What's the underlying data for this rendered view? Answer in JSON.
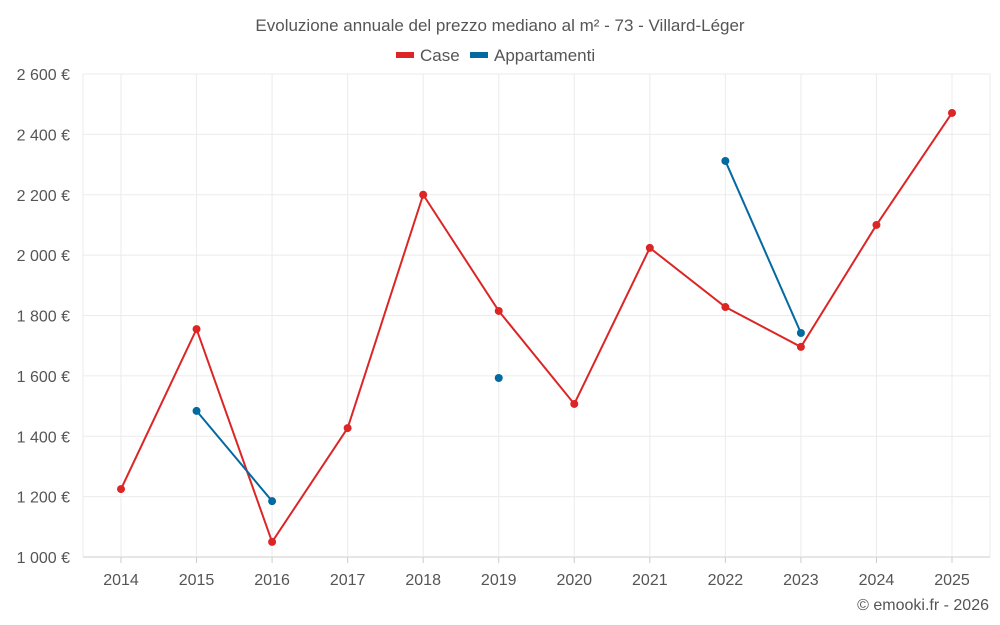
{
  "chart_data": {
    "type": "line",
    "title": "Evoluzione annuale del prezzo mediano al m² - 73 - Villard-Léger",
    "xlabel": "",
    "ylabel": "",
    "x": [
      "2014",
      "2015",
      "2016",
      "2017",
      "2018",
      "2019",
      "2020",
      "2021",
      "2022",
      "2023",
      "2024",
      "2025"
    ],
    "ylim": [
      1000,
      2600
    ],
    "yticks": [
      1000,
      1200,
      1400,
      1600,
      1800,
      2000,
      2200,
      2400,
      2600
    ],
    "ytick_labels": [
      "1 000 €",
      "1 200 €",
      "1 400 €",
      "1 600 €",
      "1 800 €",
      "2 000 €",
      "2 200 €",
      "2 400 €",
      "2 600 €"
    ],
    "grid": true,
    "legend_position": "top-center",
    "series": [
      {
        "name": "Case",
        "color": "#dc2626",
        "values": [
          1225,
          1755,
          1050,
          1427,
          2200,
          1815,
          1507,
          2024,
          1828,
          1696,
          2100,
          2471
        ]
      },
      {
        "name": "Appartamenti",
        "color": "#0369a1",
        "values": [
          null,
          1484,
          1185,
          null,
          null,
          1593,
          null,
          null,
          2312,
          1742,
          null,
          null
        ]
      }
    ],
    "credit": "© emooki.fr - 2026"
  }
}
